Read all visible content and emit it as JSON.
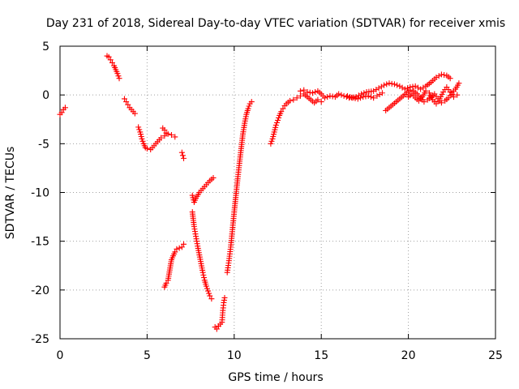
{
  "chart_data": {
    "type": "scatter",
    "title": "Day 231 of 2018, Sidereal Day-to-day VTEC variation (SDTVAR) for receiver xmis",
    "xlabel": "GPS time / hours",
    "ylabel": "SDTVAR / TECUs",
    "xlim": [
      0,
      25
    ],
    "ylim": [
      -25,
      5
    ],
    "xticks": [
      0,
      5,
      10,
      15,
      20,
      25
    ],
    "yticks": [
      -25,
      -20,
      -15,
      -10,
      -5,
      0,
      5
    ],
    "grid": true,
    "marker": "+",
    "color": "#ff0000",
    "segments": [
      {
        "name": "arc-1",
        "points": [
          [
            0.0,
            -2.0
          ],
          [
            0.1,
            -1.8
          ],
          [
            0.2,
            -1.5
          ],
          [
            0.3,
            -1.3
          ]
        ]
      },
      {
        "name": "arc-2",
        "points": [
          [
            2.7,
            4.0
          ],
          [
            2.8,
            3.9
          ],
          [
            2.9,
            3.6
          ],
          [
            3.0,
            3.3
          ],
          [
            3.1,
            3.0
          ],
          [
            3.2,
            2.6
          ],
          [
            3.3,
            2.2
          ],
          [
            3.4,
            1.7
          ]
        ]
      },
      {
        "name": "arc-3",
        "points": [
          [
            3.7,
            -0.4
          ],
          [
            3.8,
            -0.7
          ],
          [
            3.9,
            -1.0
          ],
          [
            4.0,
            -1.3
          ],
          [
            4.1,
            -1.5
          ],
          [
            4.2,
            -1.7
          ],
          [
            4.3,
            -1.9
          ]
        ]
      },
      {
        "name": "arc-4",
        "points": [
          [
            4.5,
            -3.3
          ],
          [
            4.6,
            -3.8
          ],
          [
            4.7,
            -4.5
          ],
          [
            4.8,
            -5.0
          ],
          [
            4.9,
            -5.4
          ],
          [
            5.0,
            -5.5
          ],
          [
            5.2,
            -5.6
          ],
          [
            5.4,
            -5.2
          ],
          [
            5.6,
            -4.8
          ],
          [
            5.8,
            -4.4
          ],
          [
            6.0,
            -4.2
          ],
          [
            6.2,
            -4.0
          ],
          [
            6.4,
            -4.1
          ],
          [
            6.6,
            -4.3
          ]
        ]
      },
      {
        "name": "arc-5",
        "points": [
          [
            5.9,
            -3.4
          ],
          [
            6.0,
            -3.6
          ],
          [
            6.1,
            -3.9
          ]
        ]
      },
      {
        "name": "arc-6",
        "points": [
          [
            7.0,
            -5.9
          ],
          [
            7.05,
            -6.2
          ],
          [
            7.1,
            -6.5
          ]
        ]
      },
      {
        "name": "arc-7",
        "points": [
          [
            6.0,
            -19.7
          ],
          [
            6.1,
            -19.3
          ],
          [
            6.2,
            -19.0
          ],
          [
            6.4,
            -16.9
          ],
          [
            6.5,
            -16.5
          ],
          [
            6.6,
            -16.1
          ],
          [
            6.7,
            -15.8
          ],
          [
            7.0,
            -15.6
          ],
          [
            7.1,
            -15.3
          ]
        ]
      },
      {
        "name": "arc-8",
        "points": [
          [
            7.6,
            -10.3
          ],
          [
            7.7,
            -11.0
          ],
          [
            7.8,
            -10.6
          ],
          [
            8.0,
            -10.0
          ],
          [
            8.2,
            -9.6
          ],
          [
            8.4,
            -9.2
          ],
          [
            8.6,
            -8.8
          ],
          [
            8.8,
            -8.5
          ]
        ]
      },
      {
        "name": "arc-9",
        "points": [
          [
            7.6,
            -12.0
          ],
          [
            7.7,
            -13.5
          ],
          [
            7.8,
            -14.5
          ],
          [
            7.9,
            -15.5
          ],
          [
            8.0,
            -16.4
          ],
          [
            8.1,
            -17.3
          ],
          [
            8.2,
            -18.2
          ],
          [
            8.3,
            -19.0
          ],
          [
            8.4,
            -19.6
          ],
          [
            8.5,
            -20.1
          ],
          [
            8.6,
            -20.6
          ],
          [
            8.7,
            -20.9
          ]
        ]
      },
      {
        "name": "arc-10",
        "points": [
          [
            8.9,
            -23.8
          ],
          [
            9.0,
            -24.0
          ],
          [
            9.1,
            -23.7
          ],
          [
            9.2,
            -23.5
          ],
          [
            9.3,
            -23.3
          ],
          [
            9.35,
            -22.1
          ],
          [
            9.4,
            -21.3
          ],
          [
            9.45,
            -20.8
          ]
        ]
      },
      {
        "name": "arc-11",
        "points": [
          [
            9.6,
            -18.2
          ],
          [
            9.7,
            -17.0
          ],
          [
            9.8,
            -15.6
          ],
          [
            9.9,
            -13.8
          ],
          [
            10.0,
            -12.0
          ],
          [
            10.1,
            -10.3
          ],
          [
            10.2,
            -8.6
          ],
          [
            10.3,
            -7.0
          ],
          [
            10.4,
            -5.5
          ],
          [
            10.5,
            -4.0
          ],
          [
            10.6,
            -2.9
          ],
          [
            10.7,
            -2.0
          ],
          [
            10.8,
            -1.4
          ],
          [
            10.9,
            -0.9
          ],
          [
            11.0,
            -0.7
          ]
        ]
      },
      {
        "name": "arc-12",
        "points": [
          [
            12.1,
            -5.0
          ],
          [
            12.2,
            -4.5
          ],
          [
            12.3,
            -3.8
          ],
          [
            12.4,
            -3.1
          ],
          [
            12.5,
            -2.6
          ],
          [
            12.6,
            -2.1
          ],
          [
            12.7,
            -1.7
          ],
          [
            12.8,
            -1.4
          ],
          [
            12.9,
            -1.1
          ],
          [
            13.0,
            -0.9
          ],
          [
            13.2,
            -0.6
          ],
          [
            13.4,
            -0.5
          ],
          [
            13.6,
            -0.3
          ],
          [
            13.8,
            -0.1
          ],
          [
            14.0,
            0.1
          ],
          [
            14.2,
            -0.2
          ],
          [
            14.4,
            -0.5
          ],
          [
            14.6,
            -0.8
          ],
          [
            14.8,
            -0.5
          ],
          [
            15.0,
            -0.7
          ]
        ]
      },
      {
        "name": "arc-13",
        "points": [
          [
            13.8,
            0.4
          ],
          [
            14.0,
            0.5
          ],
          [
            14.2,
            0.3
          ],
          [
            14.5,
            0.2
          ],
          [
            14.8,
            0.4
          ],
          [
            15.0,
            0.1
          ],
          [
            15.2,
            -0.3
          ],
          [
            15.5,
            -0.1
          ],
          [
            15.8,
            -0.2
          ],
          [
            16.0,
            0.1
          ],
          [
            16.3,
            -0.1
          ],
          [
            16.6,
            -0.3
          ],
          [
            17.0,
            -0.2
          ],
          [
            17.3,
            0.1
          ],
          [
            17.6,
            0.3
          ],
          [
            18.0,
            0.4
          ],
          [
            18.3,
            0.7
          ],
          [
            18.6,
            1.0
          ],
          [
            18.9,
            1.2
          ],
          [
            19.2,
            1.1
          ],
          [
            19.5,
            0.9
          ],
          [
            19.8,
            0.6
          ],
          [
            20.1,
            0.8
          ],
          [
            20.4,
            0.9
          ],
          [
            20.7,
            0.6
          ],
          [
            21.0,
            0.9
          ],
          [
            21.3,
            1.3
          ],
          [
            21.6,
            1.8
          ],
          [
            21.9,
            2.1
          ],
          [
            22.2,
            2.0
          ],
          [
            22.4,
            1.7
          ]
        ]
      },
      {
        "name": "arc-14",
        "points": [
          [
            16.5,
            -0.1
          ],
          [
            16.8,
            -0.3
          ],
          [
            17.1,
            -0.4
          ],
          [
            17.4,
            -0.2
          ],
          [
            17.7,
            -0.1
          ],
          [
            18.0,
            -0.3
          ],
          [
            18.2,
            -0.1
          ],
          [
            18.5,
            0.2
          ]
        ]
      },
      {
        "name": "arc-15",
        "points": [
          [
            18.7,
            -1.6
          ],
          [
            18.9,
            -1.3
          ],
          [
            19.1,
            -1.0
          ],
          [
            19.3,
            -0.7
          ],
          [
            19.5,
            -0.4
          ],
          [
            19.7,
            -0.1
          ],
          [
            19.9,
            0.2
          ],
          [
            20.1,
            0.5
          ],
          [
            20.3,
            0.4
          ],
          [
            20.5,
            0.1
          ],
          [
            20.7,
            -0.3
          ],
          [
            20.9,
            -0.7
          ],
          [
            21.1,
            -0.5
          ],
          [
            21.3,
            -0.2
          ],
          [
            21.5,
            0.1
          ],
          [
            21.7,
            -0.4
          ],
          [
            21.9,
            -0.8
          ],
          [
            22.1,
            -0.6
          ],
          [
            22.3,
            -0.3
          ],
          [
            22.5,
            0.2
          ],
          [
            22.7,
            0.6
          ],
          [
            22.9,
            1.2
          ]
        ]
      },
      {
        "name": "arc-16",
        "points": [
          [
            20.0,
            -0.2
          ],
          [
            20.2,
            0.1
          ],
          [
            20.4,
            -0.3
          ],
          [
            20.6,
            -0.6
          ],
          [
            20.8,
            -0.2
          ],
          [
            21.0,
            0.4
          ],
          [
            21.2,
            0.2
          ],
          [
            21.4,
            -0.5
          ],
          [
            21.6,
            -0.9
          ],
          [
            21.8,
            -0.4
          ],
          [
            22.0,
            0.3
          ],
          [
            22.2,
            0.8
          ],
          [
            22.4,
            0.3
          ],
          [
            22.6,
            -0.2
          ],
          [
            22.8,
            0.0
          ]
        ]
      }
    ]
  }
}
